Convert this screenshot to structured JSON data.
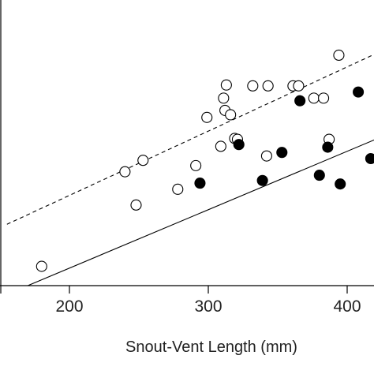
{
  "chart_data": {
    "type": "scatter",
    "xlabel": "Snout-Vent Length (mm)",
    "ylabel": "",
    "title": "",
    "xlim": [
      155,
      425
    ],
    "x_ticks": [
      200,
      300,
      400
    ],
    "x_tick_labels": [
      "200",
      "300",
      "400"
    ],
    "grid": false,
    "series": [
      {
        "marker": "open-circle",
        "points": [
          [
            180,
            22
          ],
          [
            240,
            130
          ],
          [
            248,
            92
          ],
          [
            253,
            143
          ],
          [
            278,
            110
          ],
          [
            291,
            137
          ],
          [
            299,
            192
          ],
          [
            309,
            159
          ],
          [
            311,
            214
          ],
          [
            312,
            200
          ],
          [
            313,
            229
          ],
          [
            316,
            195
          ],
          [
            319,
            168
          ],
          [
            321,
            167
          ],
          [
            332,
            228
          ],
          [
            342,
            148
          ],
          [
            343,
            228
          ],
          [
            361,
            228
          ],
          [
            365,
            228
          ],
          [
            376,
            214
          ],
          [
            383,
            214
          ],
          [
            387,
            167
          ],
          [
            394,
            263
          ]
        ]
      },
      {
        "marker": "filled-circle",
        "points": [
          [
            294,
            117
          ],
          [
            322,
            161
          ],
          [
            339,
            120
          ],
          [
            353,
            152
          ],
          [
            366,
            211
          ],
          [
            380,
            126
          ],
          [
            386,
            158
          ],
          [
            395,
            116
          ],
          [
            408,
            221
          ],
          [
            417,
            145
          ]
        ]
      }
    ],
    "lines": [
      {
        "style": "dashed",
        "x": [
          155,
          425
        ],
        "y": [
          70,
          268
        ]
      },
      {
        "style": "solid",
        "x": [
          155,
          425
        ],
        "y": [
          -10,
          170
        ]
      }
    ],
    "ylim": [
      0,
      290
    ],
    "colors": {
      "ink": "#000000",
      "background": "#ffffff"
    }
  }
}
